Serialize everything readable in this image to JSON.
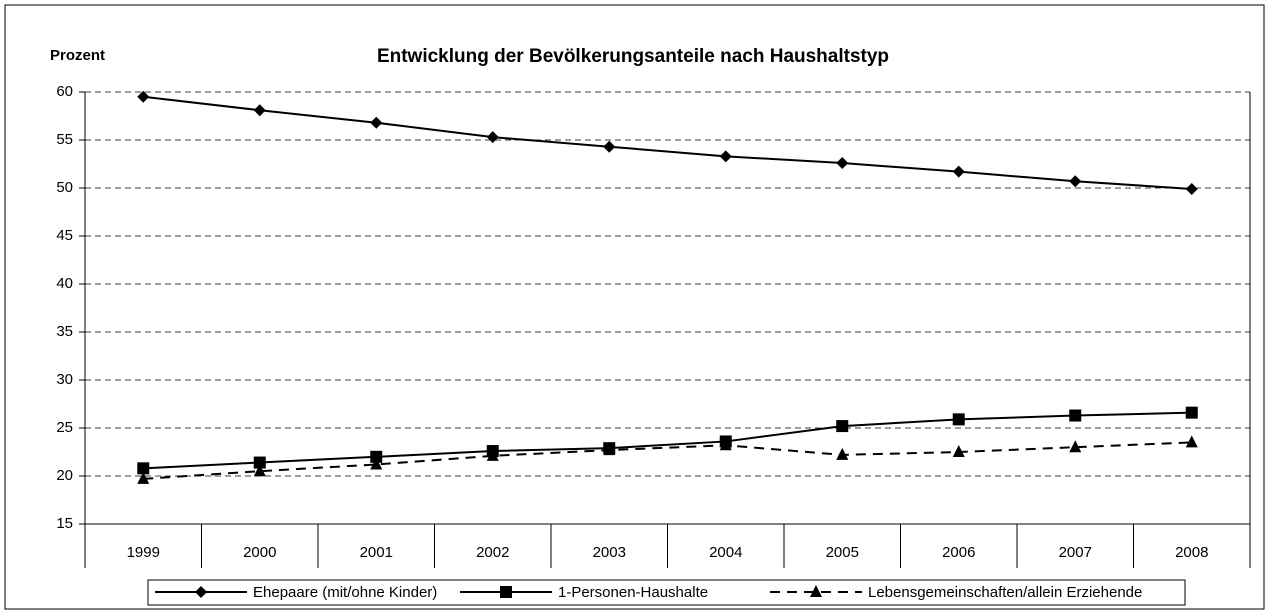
{
  "chart_data": {
    "type": "line",
    "title": "Entwicklung der Bevölkerungsanteile nach Haushaltstyp",
    "y_label": "Prozent",
    "categories": [
      "1999",
      "2000",
      "2001",
      "2002",
      "2003",
      "2004",
      "2005",
      "2006",
      "2007",
      "2008"
    ],
    "series": [
      {
        "name": "Ehepaare (mit/ohne Kinder)",
        "color": "#000000",
        "marker": "diamond",
        "line_style": "solid",
        "values": [
          59.5,
          58.1,
          56.8,
          55.3,
          54.3,
          53.3,
          52.6,
          51.7,
          50.7,
          49.9
        ]
      },
      {
        "name": "1-Personen-Haushalte",
        "color": "#000000",
        "marker": "square",
        "line_style": "solid",
        "values": [
          20.8,
          21.4,
          22.0,
          22.6,
          22.9,
          23.6,
          25.2,
          25.9,
          26.3,
          26.6
        ]
      },
      {
        "name": "Lebensgemeinschaften/allein Erziehende",
        "color": "#000000",
        "marker": "triangle",
        "line_style": "dashed",
        "values": [
          19.7,
          20.5,
          21.2,
          22.1,
          22.7,
          23.2,
          22.2,
          22.5,
          23.0,
          23.5
        ]
      }
    ],
    "ylim": [
      15,
      60
    ],
    "yticks": [
      15,
      20,
      25,
      30,
      35,
      40,
      45,
      50,
      55,
      60
    ],
    "grid": true,
    "legend": "bottom"
  }
}
